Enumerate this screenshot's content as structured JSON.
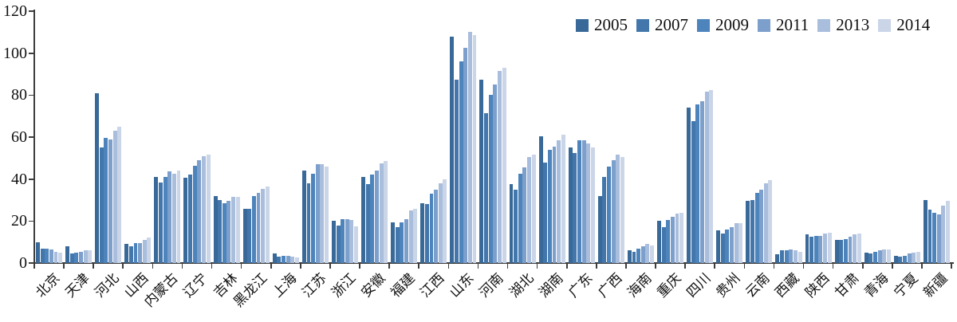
{
  "chart_data": {
    "type": "bar",
    "title": "",
    "xlabel": "",
    "ylabel": "",
    "ylim": [
      0,
      120
    ],
    "yticks": [
      0,
      20,
      40,
      60,
      80,
      100,
      120
    ],
    "grid": false,
    "legend_position": "top-right",
    "categories": [
      "北京",
      "天津",
      "河北",
      "山西",
      "内蒙古",
      "辽宁",
      "吉林",
      "黑龙江",
      "上海",
      "江苏",
      "浙江",
      "安徽",
      "福建",
      "江西",
      "山东",
      "河南",
      "湖北",
      "湖南",
      "广东",
      "广西",
      "海南",
      "重庆",
      "四川",
      "贵州",
      "云南",
      "西藏",
      "陕西",
      "甘肃",
      "青海",
      "宁夏",
      "新疆"
    ],
    "series": [
      {
        "name": "2005",
        "color": "#386998",
        "values": [
          10,
          8,
          81,
          9,
          41,
          40.5,
          32,
          26,
          4.5,
          44,
          20,
          41,
          19.5,
          28.5,
          108,
          87.5,
          37.5,
          60.5,
          55,
          32,
          6,
          20,
          74,
          15.5,
          29.5,
          4,
          13.5,
          11,
          5,
          3.5,
          30
        ]
      },
      {
        "name": "2007",
        "color": "#4377ac",
        "values": [
          7,
          4.5,
          55,
          8,
          38.5,
          42,
          30,
          26,
          3,
          38,
          18,
          37.5,
          17,
          28,
          87.5,
          71.5,
          35,
          48,
          52.5,
          41,
          5.5,
          17,
          67.5,
          14,
          30,
          6,
          12.5,
          11,
          4.5,
          3,
          25.5
        ]
      },
      {
        "name": "2009",
        "color": "#4d84bc",
        "values": [
          7,
          5,
          59.5,
          9.5,
          41,
          46.5,
          28.5,
          32,
          3.5,
          42.5,
          21,
          42,
          19.5,
          33,
          96,
          80,
          42.5,
          54,
          58.5,
          46,
          7,
          20.5,
          75.5,
          16,
          33.5,
          6,
          13,
          11.5,
          5.5,
          3.5,
          24
        ]
      },
      {
        "name": "2011",
        "color": "#7d9fcb",
        "values": [
          6.5,
          5.5,
          59,
          9.5,
          43.5,
          49,
          29.5,
          33.5,
          3.5,
          47,
          21,
          44,
          21,
          35,
          102.5,
          85,
          45.5,
          55.5,
          58.5,
          49,
          8,
          22,
          77,
          17,
          35,
          6.5,
          13,
          12.5,
          6,
          4.5,
          23
        ]
      },
      {
        "name": "2013",
        "color": "#a9bddc",
        "values": [
          5.5,
          6,
          63,
          11,
          42.5,
          51,
          31.5,
          35.5,
          3,
          47,
          20.5,
          47.5,
          25,
          38,
          110,
          91.5,
          50.5,
          58.5,
          57,
          51.5,
          9,
          23.5,
          81.5,
          19,
          38,
          6,
          14,
          13.5,
          6.5,
          5,
          27.5
        ]
      },
      {
        "name": "2014",
        "color": "#cad5e8",
        "values": [
          5,
          6,
          65,
          12,
          44,
          51.5,
          31.5,
          36.5,
          2.5,
          46,
          17.5,
          48.5,
          26,
          40,
          108.5,
          93,
          51.5,
          61,
          55,
          50.5,
          8.5,
          24,
          82.5,
          19,
          39.5,
          5.5,
          14.5,
          14,
          6.5,
          5.5,
          29.5
        ]
      }
    ],
    "axis_color": "#3d3d3d",
    "text_color": "#111111"
  }
}
